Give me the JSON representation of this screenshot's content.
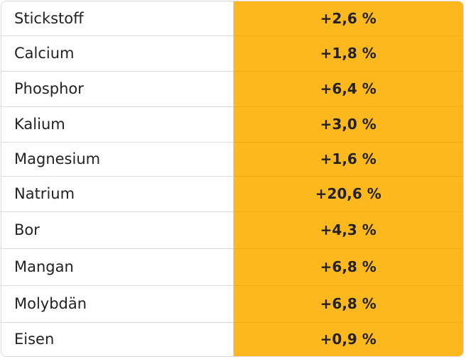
{
  "accent_color": "#fdb81e",
  "table": {
    "rows": [
      {
        "name": "Stickstoff",
        "value": "+2,6 %"
      },
      {
        "name": "Calcium",
        "value": "+1,8 %"
      },
      {
        "name": "Phosphor",
        "value": "+6,4 %"
      },
      {
        "name": "Kalium",
        "value": "+3,0 %"
      },
      {
        "name": "Magnesium",
        "value": "+1,6 %"
      },
      {
        "name": "Natrium",
        "value": "+20,6 %"
      },
      {
        "name": "Bor",
        "value": "+4,3 %"
      },
      {
        "name": "Mangan",
        "value": "+6,8 %"
      },
      {
        "name": "Molybdän",
        "value": "+6,8 %"
      },
      {
        "name": "Eisen",
        "value": "+0,9 %"
      }
    ]
  }
}
